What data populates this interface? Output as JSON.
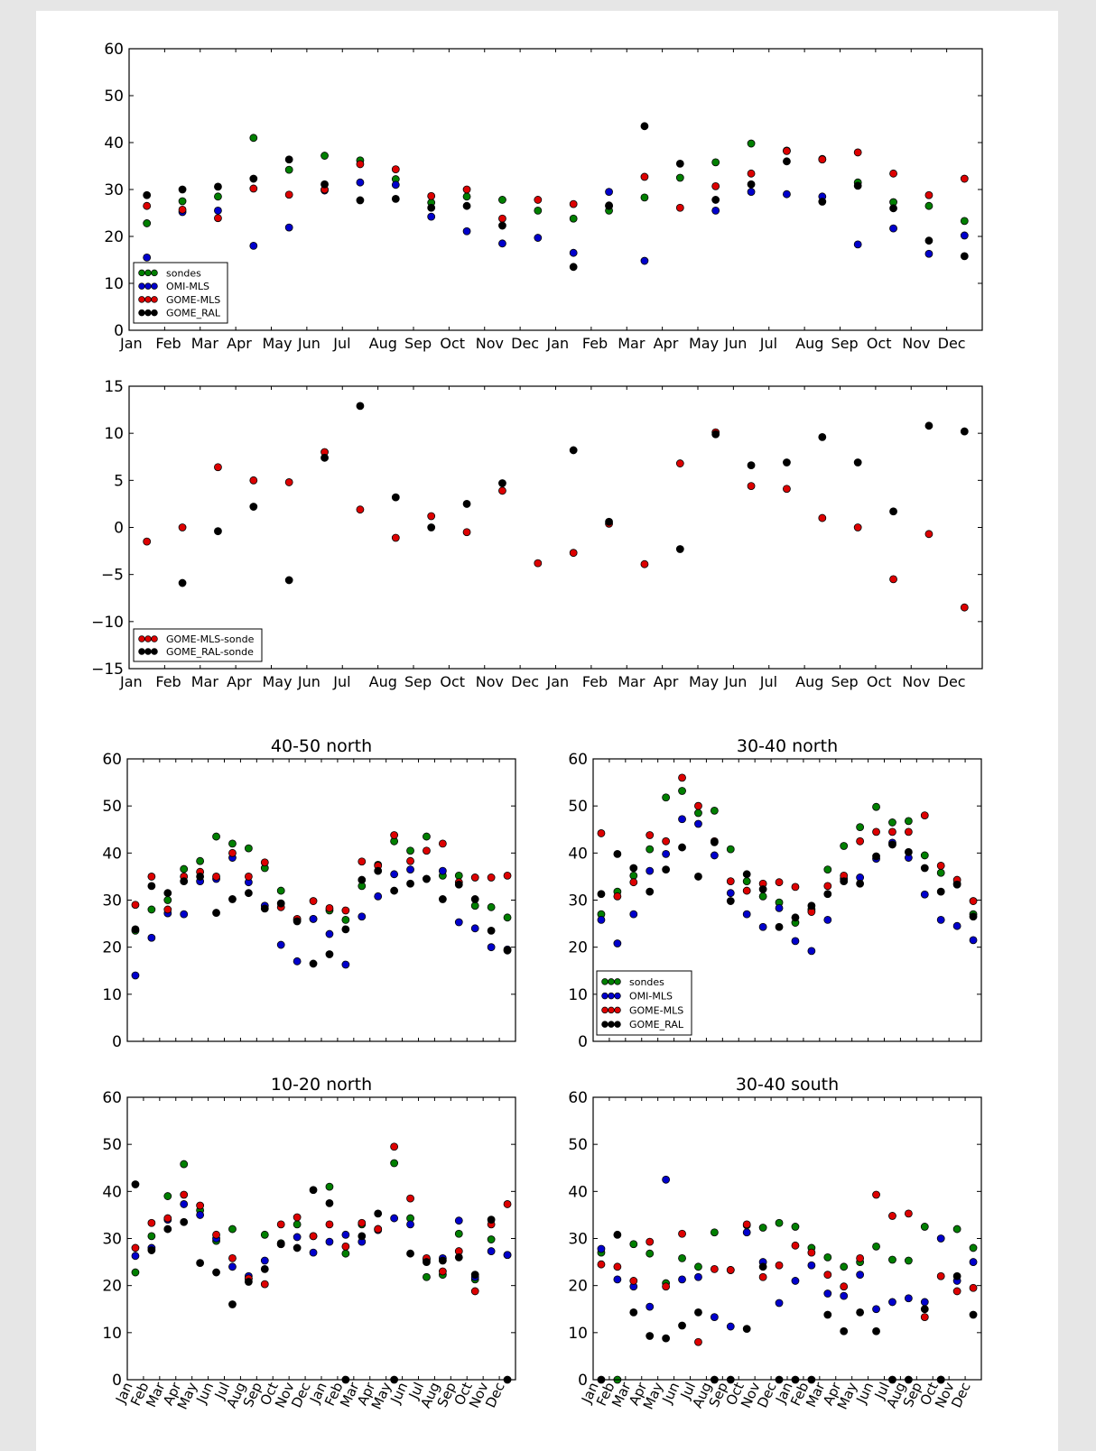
{
  "colors": {
    "sondes": "#007f00",
    "OMI-MLS": "#0000cc",
    "GOME-MLS": "#dd0000",
    "GOME_RAL": "#000000",
    "GOME-MLS-sonde": "#dd0000",
    "GOME_RAL-sonde": "#000000",
    "page_background": "#e6e6e6",
    "figure_background": "#ffffff"
  },
  "chart_data": [
    {
      "id": "timeseries",
      "type": "scatter",
      "title": "",
      "xlabel": "",
      "ylabel": "",
      "xlim": [
        0,
        24
      ],
      "ylim": [
        0,
        60
      ],
      "yticks": [
        0,
        10,
        20,
        30,
        40,
        50,
        60
      ],
      "x_tick_labels": [
        "Jan",
        "Feb",
        "Mar",
        "Apr",
        "May",
        "Jun",
        "Jul",
        "Aug",
        "Sep",
        "Oct",
        "Nov",
        "Dec",
        "Jan",
        "Feb",
        "Mar",
        "Apr",
        "May",
        "Jun",
        "Jul",
        "Aug",
        "Sep",
        "Oct",
        "Nov",
        "Dec"
      ],
      "grid": false,
      "legend": "lower-left",
      "x": [
        0.5,
        1.5,
        2.5,
        3.5,
        4.5,
        5.5,
        6.5,
        7.5,
        8.5,
        9.5,
        10.5,
        11.5,
        12.5,
        13.5,
        14.5,
        15.5,
        16.5,
        17.5,
        18.5,
        19.5,
        20.5,
        21.5,
        22.5,
        23.5
      ],
      "series": [
        {
          "name": "sondes",
          "values": [
            22.8,
            27.5,
            28.5,
            41.0,
            34.2,
            37.2,
            36.2,
            32.2,
            27.2,
            28.5,
            27.8,
            25.5,
            23.8,
            25.5,
            28.3,
            32.5,
            35.8,
            39.8,
            38.3,
            36.5,
            31.5,
            27.3,
            26.5,
            23.3
          ]
        },
        {
          "name": "OMI-MLS",
          "values": [
            15.5,
            25.2,
            25.5,
            18.0,
            21.9,
            29.8,
            31.5,
            31.0,
            24.2,
            21.1,
            18.5,
            19.7,
            16.5,
            29.5,
            14.8,
            null,
            25.5,
            29.5,
            29.0,
            28.5,
            18.3,
            21.7,
            16.3,
            20.2
          ]
        },
        {
          "name": "GOME-MLS",
          "values": [
            26.5,
            25.7,
            23.9,
            30.2,
            28.9,
            30.0,
            35.4,
            34.3,
            28.6,
            30.0,
            23.8,
            27.8,
            26.9,
            26.5,
            32.7,
            26.1,
            30.7,
            33.4,
            38.2,
            36.4,
            37.9,
            33.4,
            28.8,
            32.3
          ]
        },
        {
          "name": "GOME_RAL",
          "values": [
            28.8,
            30.0,
            30.6,
            32.3,
            36.4,
            31.1,
            27.7,
            28.0,
            26.1,
            26.5,
            22.3,
            null,
            13.5,
            26.6,
            43.5,
            35.5,
            27.8,
            31.1,
            36.0,
            27.4,
            30.8,
            26.0,
            19.1,
            15.8
          ]
        }
      ]
    },
    {
      "id": "difference",
      "type": "scatter",
      "title": "",
      "xlabel": "",
      "ylabel": "",
      "xlim": [
        0,
        24
      ],
      "ylim": [
        -15,
        15
      ],
      "yticks": [
        -15,
        -10,
        -5,
        0,
        5,
        10,
        15
      ],
      "y_tick_labels": [
        "−15",
        "−10",
        "−5",
        "0",
        "5",
        "10",
        "15"
      ],
      "x_tick_labels": [
        "Jan",
        "Feb",
        "Mar",
        "Apr",
        "May",
        "Jun",
        "Jul",
        "Aug",
        "Sep",
        "Oct",
        "Nov",
        "Dec",
        "Jan",
        "Feb",
        "Mar",
        "Apr",
        "May",
        "Jun",
        "Jul",
        "Aug",
        "Sep",
        "Oct",
        "Nov",
        "Dec"
      ],
      "grid": false,
      "legend": "lower-left",
      "x": [
        0.5,
        1.5,
        2.5,
        3.5,
        4.5,
        5.5,
        6.5,
        7.5,
        8.5,
        9.5,
        10.5,
        11.5,
        12.5,
        13.5,
        14.5,
        15.5,
        16.5,
        17.5,
        18.5,
        19.5,
        20.5,
        21.5,
        22.5,
        23.5
      ],
      "series": [
        {
          "name": "GOME-MLS-sonde",
          "values": [
            -1.5,
            0.0,
            6.4,
            5.0,
            4.8,
            8.0,
            1.9,
            -1.1,
            1.2,
            -0.5,
            3.9,
            -3.8,
            -2.7,
            0.4,
            -3.9,
            6.8,
            10.1,
            4.4,
            4.1,
            1.0,
            0.0,
            -5.5,
            -0.7,
            -8.5
          ]
        },
        {
          "name": "GOME_RAL-sonde",
          "values": [
            null,
            -5.9,
            -0.4,
            2.2,
            -5.6,
            7.4,
            12.9,
            3.2,
            0.0,
            2.5,
            4.7,
            null,
            8.2,
            0.6,
            null,
            -2.3,
            9.9,
            6.6,
            6.9,
            9.6,
            6.9,
            1.7,
            10.8,
            10.2
          ]
        }
      ]
    },
    {
      "id": "north-40-50",
      "type": "scatter",
      "title": "40-50 north",
      "xlabel": "",
      "ylabel": "",
      "xlim": [
        0,
        24
      ],
      "ylim": [
        0,
        60
      ],
      "yticks": [
        0,
        10,
        20,
        30,
        40,
        50,
        60
      ],
      "x_tick_labels": [],
      "grid": false,
      "legend": "",
      "x": [
        0.5,
        1.5,
        2.5,
        3.5,
        4.5,
        5.5,
        6.5,
        7.5,
        8.5,
        9.5,
        10.5,
        11.5,
        12.5,
        13.5,
        14.5,
        15.5,
        16.5,
        17.5,
        18.5,
        19.5,
        20.5,
        21.5,
        22.5,
        23.5
      ],
      "series": [
        {
          "name": "sondes",
          "values": [
            23.5,
            28.0,
            30.0,
            36.6,
            38.3,
            43.5,
            42.0,
            41.0,
            36.8,
            32.0,
            25.8,
            26.0,
            27.8,
            25.8,
            33.0,
            37.5,
            42.5,
            40.5,
            43.5,
            35.2,
            35.2,
            28.8,
            28.5,
            26.3
          ]
        },
        {
          "name": "OMI-MLS",
          "values": [
            14.0,
            22.0,
            27.2,
            27.0,
            34.0,
            34.5,
            39.0,
            33.8,
            28.8,
            20.5,
            17.0,
            26.0,
            22.8,
            16.3,
            26.5,
            30.8,
            35.5,
            36.5,
            34.5,
            36.2,
            25.3,
            24.0,
            20.0,
            19.5
          ]
        },
        {
          "name": "GOME-MLS",
          "values": [
            29.0,
            35.0,
            28.0,
            35.0,
            36.0,
            35.0,
            40.0,
            35.0,
            38.0,
            28.5,
            26.0,
            29.8,
            28.3,
            27.8,
            38.2,
            37.3,
            43.8,
            38.3,
            40.5,
            42.0,
            33.8,
            34.8,
            34.8,
            35.2
          ]
        },
        {
          "name": "GOME_RAL",
          "values": [
            23.8,
            33.0,
            31.5,
            34.0,
            35.0,
            27.3,
            30.2,
            31.5,
            28.2,
            29.3,
            25.5,
            16.5,
            18.5,
            23.8,
            34.3,
            36.2,
            32.0,
            33.5,
            34.5,
            30.2,
            33.3,
            30.2,
            23.5,
            19.3
          ]
        }
      ]
    },
    {
      "id": "north-30-40",
      "type": "scatter",
      "title": "30-40 north",
      "xlabel": "",
      "ylabel": "",
      "xlim": [
        0,
        24
      ],
      "ylim": [
        0,
        60
      ],
      "yticks": [
        0,
        10,
        20,
        30,
        40,
        50,
        60
      ],
      "x_tick_labels": [],
      "grid": false,
      "legend": "lower-left",
      "x": [
        0.5,
        1.5,
        2.5,
        3.5,
        4.5,
        5.5,
        6.5,
        7.5,
        8.5,
        9.5,
        10.5,
        11.5,
        12.5,
        13.5,
        14.5,
        15.5,
        16.5,
        17.5,
        18.5,
        19.5,
        20.5,
        21.5,
        22.5,
        23.5
      ],
      "series": [
        {
          "name": "sondes",
          "values": [
            27.0,
            31.8,
            35.2,
            40.8,
            51.8,
            53.2,
            48.5,
            49.0,
            40.8,
            34.0,
            30.8,
            29.5,
            25.2,
            28.0,
            36.5,
            41.5,
            45.5,
            49.8,
            46.5,
            46.8,
            39.5,
            35.8,
            33.5,
            27.0
          ]
        },
        {
          "name": "OMI-MLS",
          "values": [
            25.8,
            20.8,
            27.0,
            36.2,
            39.8,
            47.2,
            46.2,
            39.5,
            31.5,
            27.0,
            24.3,
            28.3,
            21.3,
            19.2,
            25.8,
            34.5,
            34.8,
            38.8,
            42.2,
            39.0,
            31.2,
            25.8,
            24.5,
            21.5
          ]
        },
        {
          "name": "GOME-MLS",
          "values": [
            44.2,
            30.8,
            33.8,
            43.8,
            42.5,
            56.0,
            50.0,
            42.5,
            34.0,
            32.0,
            33.5,
            33.8,
            32.8,
            27.5,
            33.0,
            35.2,
            42.5,
            44.5,
            44.5,
            44.5,
            48.0,
            37.3,
            34.3,
            29.8
          ]
        },
        {
          "name": "GOME_RAL",
          "values": [
            31.3,
            39.8,
            36.8,
            31.8,
            36.5,
            41.2,
            35.0,
            42.3,
            29.8,
            35.5,
            32.3,
            24.3,
            26.3,
            28.8,
            31.3,
            34.0,
            33.5,
            39.3,
            41.8,
            40.2,
            36.8,
            31.8,
            33.3,
            26.5
          ]
        }
      ]
    },
    {
      "id": "north-10-20",
      "type": "scatter",
      "title": "10-20 north",
      "xlabel": "",
      "ylabel": "",
      "xlim": [
        0,
        24
      ],
      "ylim": [
        0,
        60
      ],
      "yticks": [
        0,
        10,
        20,
        30,
        40,
        50,
        60
      ],
      "x_tick_labels": [
        "Jan",
        "Feb",
        "Mar",
        "Apr",
        "May",
        "Jun",
        "Jul",
        "Aug",
        "Sep",
        "Oct",
        "Nov",
        "Dec",
        "Jan",
        "Feb",
        "Mar",
        "Apr",
        "May",
        "Jun",
        "Jul",
        "Aug",
        "Sep",
        "Oct",
        "Nov",
        "Dec"
      ],
      "grid": false,
      "legend": "",
      "x": [
        0.5,
        1.5,
        2.5,
        3.5,
        4.5,
        5.5,
        6.5,
        7.5,
        8.5,
        9.5,
        10.5,
        11.5,
        12.5,
        13.5,
        14.5,
        15.5,
        16.5,
        17.5,
        18.5,
        19.5,
        20.5,
        21.5,
        22.5,
        23.5
      ],
      "series": [
        {
          "name": "sondes",
          "values": [
            22.8,
            30.5,
            39.0,
            45.8,
            36.0,
            29.5,
            32.0,
            21.5,
            30.8,
            29.0,
            33.0,
            30.5,
            41.0,
            26.8,
            33.0,
            32.0,
            46.0,
            34.3,
            21.8,
            22.3,
            31.0,
            21.3,
            29.8,
            26.5
          ]
        },
        {
          "name": "OMI-MLS",
          "values": [
            26.3,
            28.0,
            34.0,
            37.3,
            35.0,
            30.0,
            24.0,
            22.0,
            25.3,
            28.8,
            30.3,
            27.0,
            29.3,
            30.8,
            29.3,
            31.8,
            34.3,
            33.0,
            25.5,
            25.8,
            33.8,
            21.8,
            27.3,
            26.5
          ]
        },
        {
          "name": "GOME-MLS",
          "values": [
            28.0,
            33.3,
            34.3,
            39.3,
            37.0,
            30.8,
            25.8,
            21.5,
            20.3,
            33.0,
            34.5,
            30.5,
            33.0,
            28.3,
            33.3,
            32.0,
            49.5,
            38.5,
            25.8,
            23.0,
            27.3,
            18.8,
            33.0,
            37.3
          ]
        },
        {
          "name": "GOME_RAL",
          "values": [
            41.5,
            27.5,
            32.0,
            33.5,
            24.8,
            22.8,
            16.0,
            20.8,
            23.5,
            28.8,
            28.0,
            40.3,
            37.5,
            0.0,
            30.5,
            35.3,
            0.0,
            26.8,
            25.0,
            25.3,
            26.0,
            22.3,
            34.0,
            0.0
          ]
        }
      ]
    },
    {
      "id": "south-30-40",
      "type": "scatter",
      "title": "30-40 south",
      "xlabel": "",
      "ylabel": "",
      "xlim": [
        0,
        24
      ],
      "ylim": [
        0,
        60
      ],
      "yticks": [
        0,
        10,
        20,
        30,
        40,
        50,
        60
      ],
      "x_tick_labels": [
        "Jan",
        "Feb",
        "Mar",
        "Apr",
        "May",
        "Jun",
        "Jul",
        "Aug",
        "Sep",
        "Oct",
        "Nov",
        "Dec",
        "Jan",
        "Feb",
        "Mar",
        "Apr",
        "May",
        "Jun",
        "Jul",
        "Aug",
        "Sep",
        "Oct",
        "Nov",
        "Dec"
      ],
      "grid": false,
      "legend": "",
      "x": [
        0.5,
        1.5,
        2.5,
        3.5,
        4.5,
        5.5,
        6.5,
        7.5,
        8.5,
        9.5,
        10.5,
        11.5,
        12.5,
        13.5,
        14.5,
        15.5,
        16.5,
        17.5,
        18.5,
        19.5,
        20.5,
        21.5,
        22.5,
        23.5
      ],
      "series": [
        {
          "name": "sondes",
          "values": [
            27.0,
            0.0,
            28.8,
            26.8,
            20.5,
            25.8,
            24.0,
            31.3,
            23.3,
            32.8,
            32.3,
            33.3,
            32.5,
            28.0,
            26.0,
            24.0,
            25.0,
            28.3,
            25.5,
            25.3,
            32.5,
            0.0,
            32.0,
            28.0
          ]
        },
        {
          "name": "OMI-MLS",
          "values": [
            27.8,
            21.3,
            19.8,
            15.5,
            42.5,
            21.3,
            21.8,
            13.3,
            11.3,
            31.3,
            25.0,
            16.3,
            21.0,
            24.3,
            18.3,
            17.8,
            22.3,
            15.0,
            16.5,
            17.3,
            16.5,
            30.0,
            21.0,
            25.0
          ]
        },
        {
          "name": "GOME-MLS",
          "values": [
            24.5,
            24.0,
            21.0,
            29.3,
            19.8,
            31.0,
            8.0,
            23.5,
            23.3,
            33.0,
            21.8,
            24.3,
            28.5,
            27.0,
            22.3,
            19.8,
            25.8,
            39.3,
            34.8,
            35.3,
            13.3,
            22.0,
            18.8,
            19.5
          ]
        },
        {
          "name": "GOME_RAL",
          "values": [
            0.0,
            30.8,
            14.3,
            9.3,
            8.8,
            11.5,
            14.3,
            0.0,
            0.0,
            10.8,
            24.0,
            0.0,
            0.0,
            0.0,
            13.8,
            10.3,
            14.3,
            10.3,
            0.0,
            0.0,
            15.0,
            0.0,
            22.0,
            13.8
          ]
        }
      ]
    }
  ]
}
